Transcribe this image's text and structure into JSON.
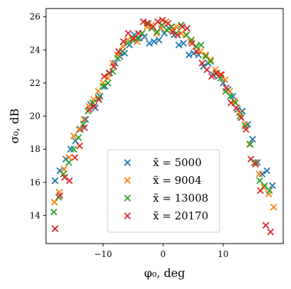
{
  "chart_data": {
    "type": "scatter",
    "title": "",
    "xlabel": "φ₀, deg",
    "ylabel": "σ₀, dB",
    "xlim": [
      -19.5,
      20.0
    ],
    "ylim": [
      12.3,
      26.5
    ],
    "xticks": [
      -10,
      0,
      10
    ],
    "xtick_labels": [
      "−10",
      "0",
      "10"
    ],
    "yticks": [
      14,
      16,
      18,
      20,
      22,
      24,
      26
    ],
    "ytick_labels": [
      "14",
      "16",
      "18",
      "20",
      "22",
      "24",
      "26"
    ],
    "grid": false,
    "legend_position": "lower-center",
    "marker": "x",
    "series": [
      {
        "name": "x̃ = 5000",
        "color": "#1f77b4",
        "x": [
          -18.0,
          -17.2,
          -16.2,
          -15.4,
          -14.6,
          -13.8,
          -12.9,
          -12.1,
          -11.3,
          -10.5,
          -9.7,
          -8.9,
          -8.0,
          -7.2,
          -6.4,
          -5.6,
          -4.8,
          -4.0,
          -3.1,
          -2.3,
          -1.5,
          -0.7,
          0.2,
          1.0,
          1.8,
          2.6,
          3.4,
          4.3,
          5.1,
          5.9,
          6.7,
          7.5,
          8.3,
          9.2,
          10.0,
          10.8,
          11.6,
          12.4,
          13.2,
          14.1,
          14.9,
          15.7,
          16.5,
          17.3,
          18.2
        ],
        "y": [
          16.1,
          16.7,
          17.4,
          18.0,
          18.5,
          19.2,
          19.8,
          20.7,
          20.5,
          21.2,
          21.8,
          22.6,
          23.2,
          23.6,
          23.8,
          24.3,
          24.9,
          24.7,
          24.8,
          24.4,
          24.5,
          24.6,
          25.0,
          25.3,
          24.9,
          24.3,
          24.4,
          23.7,
          23.8,
          23.7,
          23.0,
          23.2,
          22.5,
          22.4,
          22.0,
          21.6,
          21.2,
          20.4,
          20.3,
          19.5,
          18.6,
          17.2,
          16.5,
          16.7,
          15.8
        ]
      },
      {
        "name": "x̃ = 9004",
        "color": "#ff7f0e",
        "x": [
          -18.1,
          -17.3,
          -16.5,
          -15.7,
          -14.9,
          -14.0,
          -13.2,
          -12.4,
          -11.6,
          -10.8,
          -10.0,
          -9.2,
          -8.4,
          -7.6,
          -6.7,
          -5.9,
          -5.1,
          -4.3,
          -3.5,
          -2.7,
          -1.9,
          -1.1,
          -0.3,
          0.5,
          1.4,
          2.2,
          3.0,
          3.8,
          4.6,
          5.4,
          6.2,
          7.1,
          7.9,
          8.7,
          9.5,
          10.3,
          11.1,
          11.9,
          12.7,
          13.6,
          14.4,
          15.2,
          16.0,
          16.8,
          17.6,
          18.4
        ],
        "y": [
          14.8,
          15.4,
          16.8,
          17.5,
          18.8,
          19.2,
          19.8,
          20.6,
          21.0,
          21.5,
          22.0,
          22.3,
          23.2,
          23.7,
          24.2,
          24.6,
          24.7,
          24.5,
          25.0,
          25.4,
          25.5,
          25.0,
          25.3,
          25.7,
          25.2,
          25.4,
          25.0,
          24.9,
          24.5,
          24.2,
          23.9,
          23.7,
          23.4,
          22.8,
          22.5,
          22.2,
          21.5,
          20.9,
          20.2,
          19.5,
          18.3,
          17.2,
          16.5,
          15.7,
          15.3,
          14.5
        ]
      },
      {
        "name": "x̃ = 13008",
        "color": "#2ca02c",
        "x": [
          -18.2,
          -17.4,
          -16.6,
          -15.7,
          -14.9,
          -14.1,
          -13.3,
          -12.5,
          -11.7,
          -10.8,
          -10.0,
          -9.2,
          -8.4,
          -7.6,
          -6.8,
          -5.9,
          -5.1,
          -4.3,
          -3.5,
          -2.7,
          -1.9,
          -1.0,
          -0.2,
          0.6,
          1.4,
          2.2,
          3.0,
          3.9,
          4.7,
          5.5,
          6.3,
          7.1,
          7.9,
          8.8,
          9.6,
          10.4,
          11.2,
          12.0,
          12.8,
          13.7,
          14.5,
          15.3,
          16.1,
          16.9,
          17.7
        ],
        "y": [
          14.2,
          15.1,
          16.5,
          17.2,
          18.0,
          18.7,
          19.5,
          20.3,
          20.8,
          21.1,
          21.8,
          22.0,
          22.7,
          23.5,
          23.9,
          24.4,
          24.6,
          24.7,
          25.0,
          25.6,
          25.3,
          25.1,
          25.5,
          25.2,
          25.4,
          25.0,
          25.5,
          24.9,
          24.6,
          24.2,
          24.3,
          23.6,
          23.3,
          22.6,
          22.3,
          21.5,
          21.2,
          20.8,
          20.0,
          19.4,
          18.3,
          17.2,
          16.1,
          15.8,
          15.5
        ]
      },
      {
        "name": "x̃ = 20170",
        "color": "#d62728",
        "x": [
          -18.0,
          -17.2,
          -16.4,
          -15.6,
          -14.7,
          -13.9,
          -13.1,
          -12.3,
          -11.5,
          -10.7,
          -9.8,
          -9.0,
          -8.2,
          -7.4,
          -6.6,
          -5.8,
          -4.9,
          -4.1,
          -3.3,
          -2.5,
          -1.7,
          -0.9,
          -0.1,
          0.8,
          1.6,
          2.4,
          3.2,
          4.0,
          4.8,
          5.6,
          6.5,
          7.3,
          8.1,
          8.9,
          9.7,
          10.5,
          11.3,
          12.2,
          13.0,
          13.8,
          14.6,
          15.4,
          16.2,
          17.1,
          17.9
        ],
        "y": [
          13.2,
          15.2,
          16.3,
          16.1,
          17.5,
          18.2,
          19.3,
          20.4,
          20.6,
          21.0,
          22.4,
          22.6,
          23.0,
          23.9,
          24.5,
          25.0,
          24.7,
          25.0,
          25.7,
          25.6,
          25.4,
          25.7,
          25.8,
          25.6,
          25.1,
          24.9,
          25.4,
          25.3,
          24.4,
          23.9,
          23.2,
          22.8,
          22.4,
          22.6,
          22.5,
          21.7,
          20.8,
          20.5,
          19.9,
          19.2,
          17.4,
          17.1,
          15.5,
          13.4,
          13.0
        ]
      }
    ]
  }
}
